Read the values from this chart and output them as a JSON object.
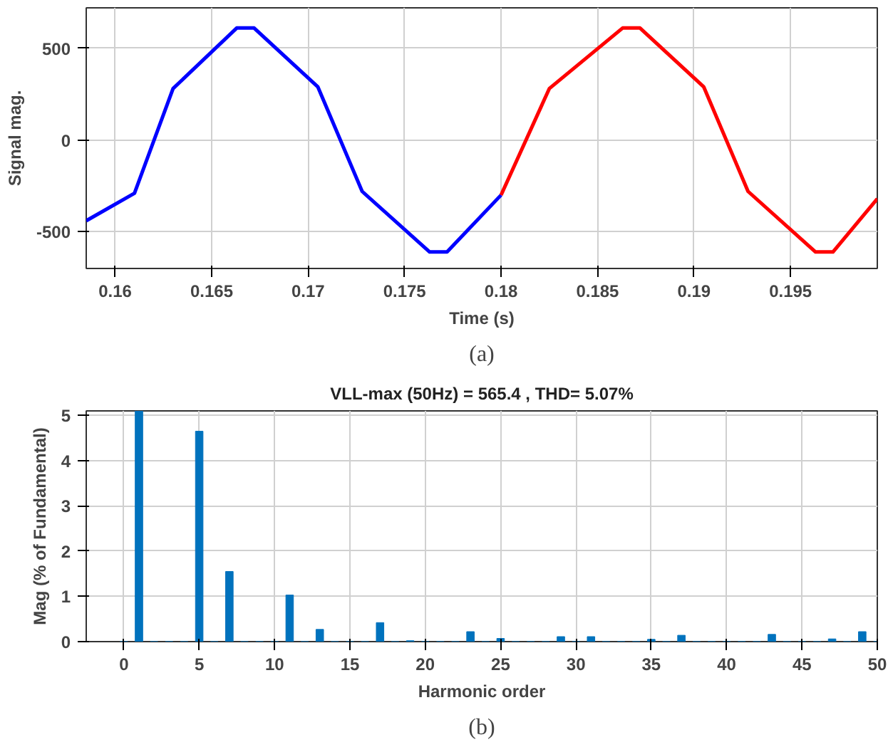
{
  "chart_data": [
    {
      "type": "line",
      "xlabel": "Time (s)",
      "ylabel": "Signal mag.",
      "annotations": [
        "(a)"
      ],
      "xlim": [
        0.1585,
        0.1995
      ],
      "ylim": [
        -700,
        720
      ],
      "xticks": [
        0.16,
        0.165,
        0.17,
        0.175,
        0.18,
        0.185,
        0.19,
        0.195
      ],
      "yticks": [
        -500,
        0,
        500
      ],
      "grid": true,
      "series": [
        {
          "color": "#0000ff",
          "x": [
            0.1585,
            0.161,
            0.163,
            0.1663,
            0.1672,
            0.1705,
            0.1728,
            0.1763,
            0.1772,
            0.18
          ],
          "values": [
            -440,
            -290,
            280,
            610,
            610,
            290,
            -280,
            -610,
            -610,
            -300
          ]
        },
        {
          "color": "#ff0000",
          "x": [
            0.18,
            0.1825,
            0.1863,
            0.1872,
            0.1905,
            0.1928,
            0.1963,
            0.1972,
            0.1995
          ],
          "values": [
            -300,
            280,
            610,
            610,
            290,
            -280,
            -610,
            -610,
            -320
          ]
        }
      ]
    },
    {
      "type": "bar",
      "title": "VLL-max (50Hz) = 565.4 , THD= 5.07%",
      "xlabel": "Harmonic order",
      "ylabel": "Mag (% of Fundamental)",
      "annotations": [
        "(b)"
      ],
      "xlim": [
        -2.5,
        50
      ],
      "ylim": [
        0,
        5.1
      ],
      "xticks": [
        0,
        5,
        10,
        15,
        20,
        25,
        30,
        35,
        40,
        45,
        50
      ],
      "yticks": [
        0,
        1,
        2,
        3,
        4,
        5
      ],
      "grid": true,
      "color": "#0072bd",
      "x": [
        0,
        1,
        2,
        3,
        4,
        5,
        6,
        7,
        8,
        9,
        10,
        11,
        12,
        13,
        14,
        15,
        16,
        17,
        18,
        19,
        20,
        21,
        22,
        23,
        24,
        25,
        26,
        27,
        28,
        29,
        30,
        31,
        32,
        33,
        34,
        35,
        36,
        37,
        38,
        39,
        40,
        41,
        42,
        43,
        44,
        45,
        46,
        47,
        48,
        49,
        50
      ],
      "values": [
        0,
        5.1,
        0,
        0,
        0,
        4.65,
        0,
        1.55,
        0,
        0,
        0,
        1.03,
        0,
        0.27,
        0,
        0,
        0,
        0.42,
        0,
        0.02,
        0,
        0,
        0,
        0.22,
        0,
        0.07,
        0,
        0,
        0,
        0.11,
        0,
        0.11,
        0,
        0,
        0,
        0.05,
        0,
        0.14,
        0,
        0,
        0,
        0,
        0,
        0.16,
        0,
        0,
        0,
        0.06,
        0,
        0.22,
        0
      ]
    }
  ]
}
